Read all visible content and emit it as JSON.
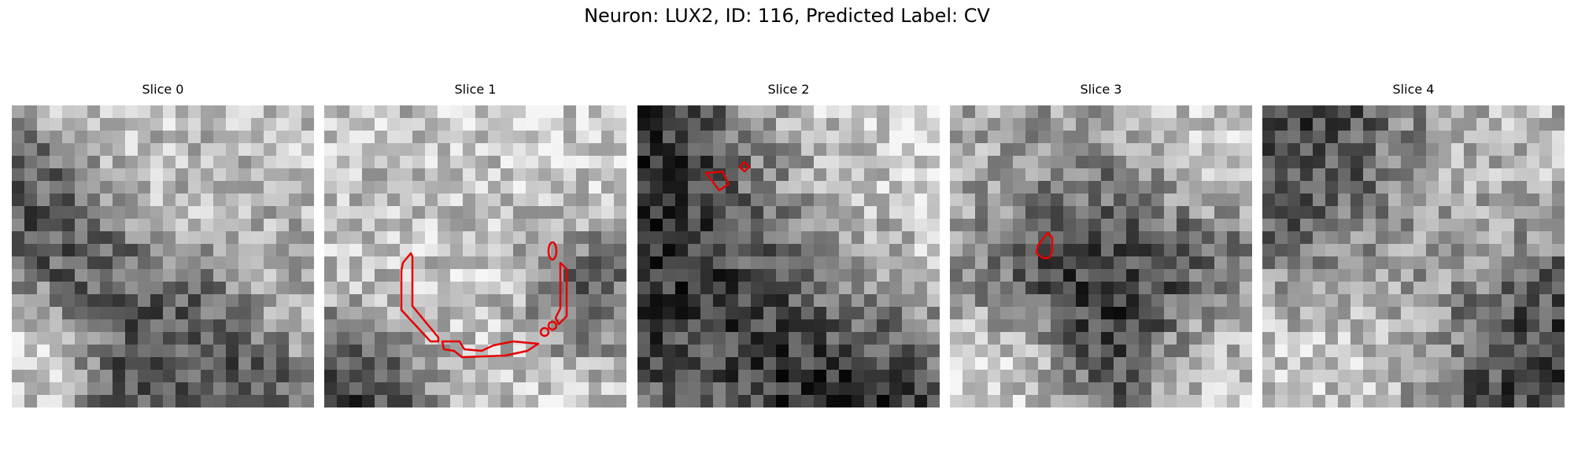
{
  "figure": {
    "suptitle": "Neuron: LUX2, ID: 116, Predicted Label: CV"
  },
  "panels": [
    {
      "title": "Slice 0",
      "has_contour": false
    },
    {
      "title": "Slice 1",
      "has_contour": true
    },
    {
      "title": "Slice 2",
      "has_contour": true
    },
    {
      "title": "Slice 3",
      "has_contour": true
    },
    {
      "title": "Slice 4",
      "has_contour": false
    }
  ],
  "colors": {
    "contour": "#e60000",
    "colormap": "gray"
  }
}
